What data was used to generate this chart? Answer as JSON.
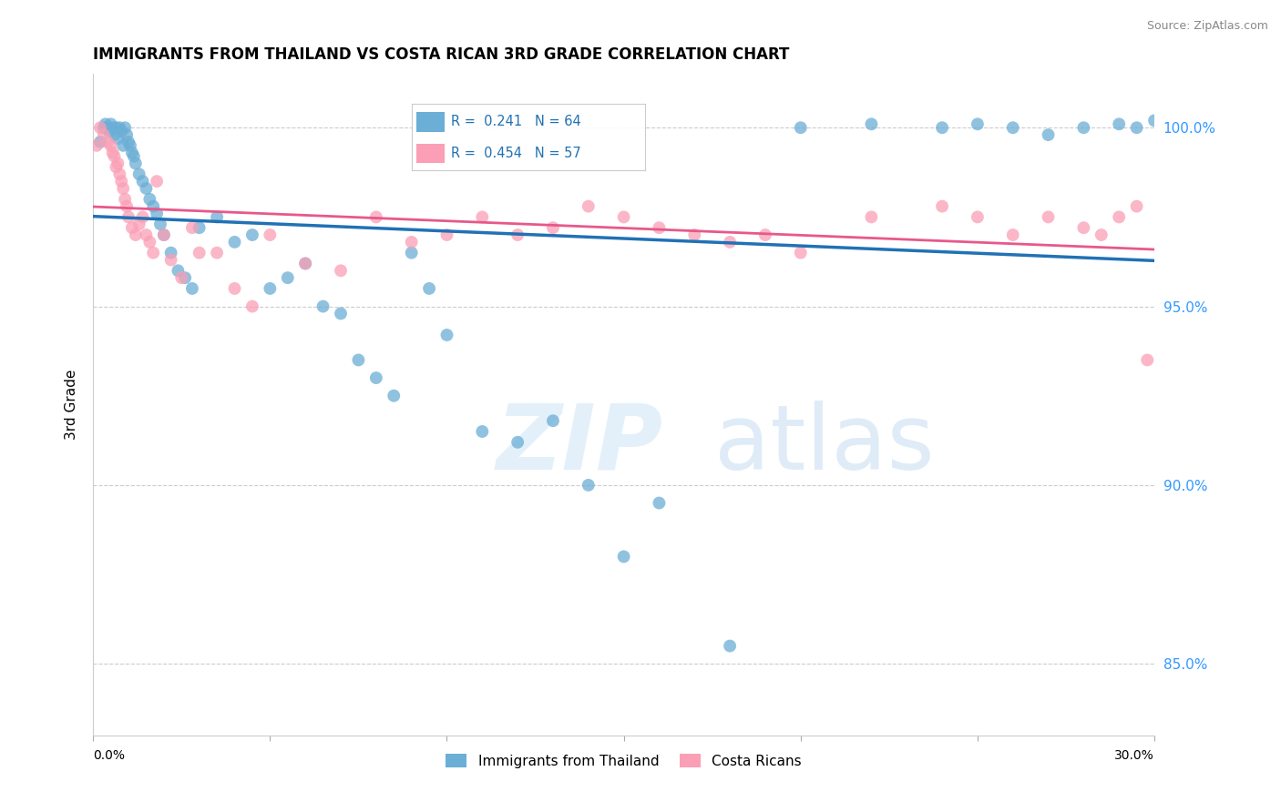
{
  "title": "IMMIGRANTS FROM THAILAND VS COSTA RICAN 3RD GRADE CORRELATION CHART",
  "source": "Source: ZipAtlas.com",
  "ylabel": "3rd Grade",
  "xlim": [
    0.0,
    30.0
  ],
  "ylim": [
    83.0,
    101.5
  ],
  "yticks": [
    85.0,
    90.0,
    95.0,
    100.0
  ],
  "ytick_labels": [
    "85.0%",
    "90.0%",
    "95.0%",
    "100.0%"
  ],
  "xticks": [
    0.0,
    5.0,
    10.0,
    15.0,
    20.0,
    25.0,
    30.0
  ],
  "legend_blue_r": "0.241",
  "legend_blue_n": "64",
  "legend_pink_r": "0.454",
  "legend_pink_n": "57",
  "blue_color": "#6baed6",
  "pink_color": "#fa9fb5",
  "blue_line_color": "#2171b5",
  "pink_line_color": "#e8588a",
  "blue_scatter_x": [
    0.2,
    0.3,
    0.35,
    0.4,
    0.45,
    0.5,
    0.55,
    0.6,
    0.65,
    0.7,
    0.75,
    0.8,
    0.85,
    0.9,
    0.95,
    1.0,
    1.05,
    1.1,
    1.15,
    1.2,
    1.3,
    1.4,
    1.5,
    1.6,
    1.7,
    1.8,
    1.9,
    2.0,
    2.2,
    2.4,
    2.6,
    2.8,
    3.0,
    3.5,
    4.0,
    4.5,
    5.0,
    5.5,
    6.0,
    6.5,
    7.0,
    7.5,
    8.0,
    8.5,
    9.0,
    9.5,
    10.0,
    11.0,
    12.0,
    13.0,
    14.0,
    15.0,
    16.0,
    18.0,
    20.0,
    22.0,
    24.0,
    25.0,
    26.0,
    27.0,
    28.0,
    29.0,
    29.5,
    30.0
  ],
  "blue_scatter_y": [
    99.6,
    100.0,
    100.1,
    100.0,
    99.9,
    100.1,
    100.0,
    99.8,
    100.0,
    99.7,
    100.0,
    99.9,
    99.5,
    100.0,
    99.8,
    99.6,
    99.5,
    99.3,
    99.2,
    99.0,
    98.7,
    98.5,
    98.3,
    98.0,
    97.8,
    97.6,
    97.3,
    97.0,
    96.5,
    96.0,
    95.8,
    95.5,
    97.2,
    97.5,
    96.8,
    97.0,
    95.5,
    95.8,
    96.2,
    95.0,
    94.8,
    93.5,
    93.0,
    92.5,
    96.5,
    95.5,
    94.2,
    91.5,
    91.2,
    91.8,
    90.0,
    88.0,
    89.5,
    85.5,
    100.0,
    100.1,
    100.0,
    100.1,
    100.0,
    99.8,
    100.0,
    100.1,
    100.0,
    100.2
  ],
  "pink_scatter_x": [
    0.1,
    0.2,
    0.3,
    0.4,
    0.5,
    0.55,
    0.6,
    0.65,
    0.7,
    0.75,
    0.8,
    0.85,
    0.9,
    0.95,
    1.0,
    1.1,
    1.2,
    1.3,
    1.4,
    1.5,
    1.6,
    1.7,
    1.8,
    2.0,
    2.2,
    2.5,
    2.8,
    3.0,
    3.5,
    4.0,
    4.5,
    5.0,
    6.0,
    7.0,
    8.0,
    9.0,
    10.0,
    11.0,
    12.0,
    13.0,
    14.0,
    15.0,
    16.0,
    17.0,
    18.0,
    19.0,
    20.0,
    22.0,
    24.0,
    25.0,
    26.0,
    27.0,
    28.0,
    28.5,
    29.0,
    29.5,
    29.8
  ],
  "pink_scatter_y": [
    99.5,
    100.0,
    99.8,
    99.6,
    99.5,
    99.3,
    99.2,
    98.9,
    99.0,
    98.7,
    98.5,
    98.3,
    98.0,
    97.8,
    97.5,
    97.2,
    97.0,
    97.3,
    97.5,
    97.0,
    96.8,
    96.5,
    98.5,
    97.0,
    96.3,
    95.8,
    97.2,
    96.5,
    96.5,
    95.5,
    95.0,
    97.0,
    96.2,
    96.0,
    97.5,
    96.8,
    97.0,
    97.5,
    97.0,
    97.2,
    97.8,
    97.5,
    97.2,
    97.0,
    96.8,
    97.0,
    96.5,
    97.5,
    97.8,
    97.5,
    97.0,
    97.5,
    97.2,
    97.0,
    97.5,
    97.8,
    93.5
  ]
}
